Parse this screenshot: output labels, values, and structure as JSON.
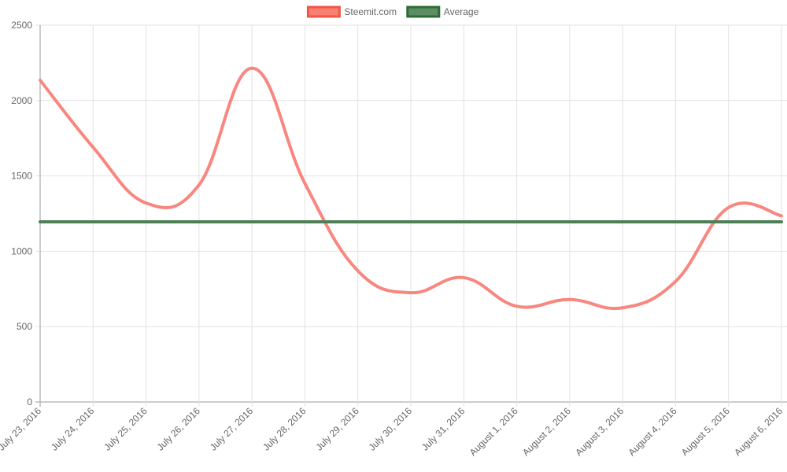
{
  "chart_data": {
    "type": "line",
    "title": "",
    "xlabel": "",
    "ylabel": "",
    "ylim": [
      0,
      2500
    ],
    "yticks": [
      0,
      500,
      1000,
      1500,
      2000,
      2500
    ],
    "grid": true,
    "legend_position": "top-center",
    "categories": [
      "July 23, 2016",
      "July 24, 2016",
      "July 25, 2016",
      "July 26, 2016",
      "July 27, 2016",
      "July 28, 2016",
      "July 29, 2016",
      "July 30, 2016",
      "July 31, 2016",
      "August 1, 2016",
      "August 2, 2016",
      "August 3, 2016",
      "August 4, 2016",
      "August 5, 2016",
      "August 6, 2016"
    ],
    "series": [
      {
        "name": "Steemit.com",
        "color": "#f7877f",
        "fill": "#fa8072",
        "legend_border": "#f05545",
        "values": [
          2135,
          1690,
          1320,
          1440,
          2215,
          1450,
          870,
          725,
          825,
          635,
          680,
          625,
          800,
          1290,
          1235
        ]
      },
      {
        "name": "Average",
        "color": "#4d7f56",
        "fill": "#5b8f63",
        "legend_border": "#2e6a35",
        "values": [
          1195,
          1195,
          1195,
          1195,
          1195,
          1195,
          1195,
          1195,
          1195,
          1195,
          1195,
          1195,
          1195,
          1195,
          1195
        ]
      }
    ]
  }
}
